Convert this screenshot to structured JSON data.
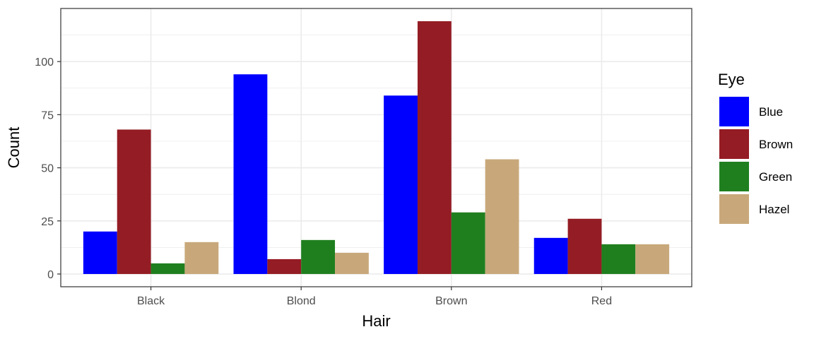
{
  "chart_data": {
    "type": "bar",
    "categories": [
      "Black",
      "Blond",
      "Brown",
      "Red"
    ],
    "series": [
      {
        "name": "Blue",
        "color": "#0000FF",
        "values": [
          20,
          94,
          84,
          17
        ]
      },
      {
        "name": "Brown",
        "color": "#941C24",
        "values": [
          68,
          7,
          119,
          26
        ]
      },
      {
        "name": "Green",
        "color": "#1F7F1F",
        "values": [
          5,
          16,
          29,
          14
        ]
      },
      {
        "name": "Hazel",
        "color": "#C8A87A",
        "values": [
          15,
          10,
          54,
          14
        ]
      }
    ],
    "xlabel": "Hair",
    "ylabel": "Count",
    "ylim": [
      -6,
      125
    ],
    "yticks": [
      0,
      25,
      50,
      75,
      100
    ],
    "legend_title": "Eye",
    "legend_position": "right",
    "grid": true
  }
}
